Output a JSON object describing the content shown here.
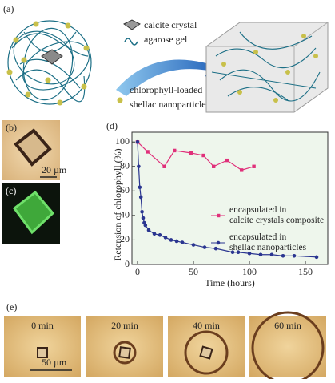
{
  "panel_a": {
    "label": "(a)",
    "crystal": "calcite crystal",
    "gel": "agarose gel",
    "particles_1": "chlorophyll-loaded",
    "particles_2": "shellac nanoparticles"
  },
  "panel_b": {
    "label": "(b)",
    "scale": "20 µm"
  },
  "panel_c": {
    "label": "(c)"
  },
  "panel_e": {
    "label": "(e)",
    "scale": "50 µm",
    "frames": [
      "0 min",
      "20 min",
      "40 min",
      "60 min"
    ]
  },
  "chart_data": {
    "type": "line",
    "panel_label": "(d)",
    "x_label": "Time (hours)",
    "y_label": "Retension of chlorophyll (%)",
    "xlim": [
      -5,
      170
    ],
    "ylim": [
      0,
      108
    ],
    "xticks": [
      0,
      50,
      100,
      150
    ],
    "yticks": [
      0,
      20,
      40,
      60,
      80,
      100
    ],
    "series": [
      {
        "name": "encapsulated in\ncalcite crystals composite",
        "color": "#e0307a",
        "marker": "square",
        "x": [
          0,
          9,
          24,
          33,
          48,
          59,
          68,
          80,
          93,
          104
        ],
        "values": [
          100,
          92,
          80,
          93,
          91,
          89,
          80,
          85,
          77,
          80
        ]
      },
      {
        "name": "encapsulated in\nshellac nanoparticles",
        "color": "#2a3590",
        "marker": "circle",
        "x": [
          0,
          1,
          2,
          3,
          4,
          5,
          6,
          7,
          10,
          15,
          20,
          25,
          30,
          35,
          40,
          50,
          60,
          70,
          85,
          90,
          100,
          110,
          120,
          130,
          140,
          160
        ],
        "values": [
          100,
          80,
          63,
          55,
          43,
          38,
          34,
          32,
          28,
          25,
          24,
          22,
          20,
          19,
          18,
          16,
          14,
          13,
          10,
          10,
          9,
          8,
          8,
          7,
          7,
          6
        ]
      }
    ]
  }
}
